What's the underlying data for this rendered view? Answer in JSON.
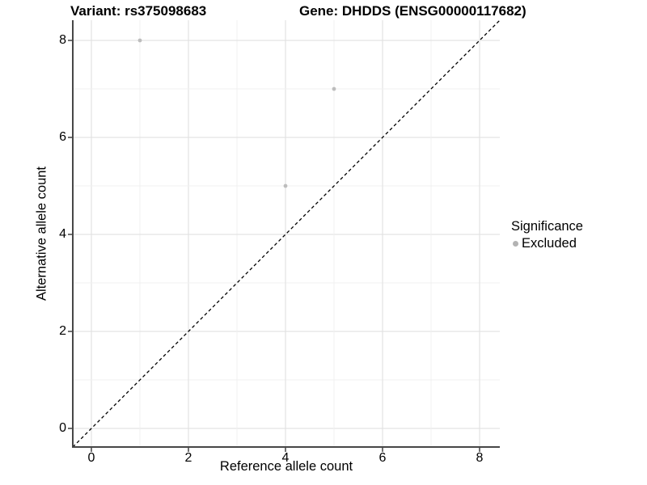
{
  "figure": {
    "title_left": "Variant: rs375098683",
    "title_right": "Gene: DHDDS (ENSG00000117682)"
  },
  "chart_data": {
    "type": "scatter",
    "title": "Variant: rs375098683   Gene: DHDDS (ENSG00000117682)",
    "xlabel": "Reference allele count",
    "ylabel": "Alternative allele count",
    "x_ticks": [
      0,
      2,
      4,
      6,
      8
    ],
    "y_ticks": [
      0,
      2,
      4,
      6,
      8
    ],
    "xlim": [
      -0.4,
      8.45
    ],
    "ylim": [
      -0.4,
      8.42
    ],
    "grid": "major at even integers, minor at odd integers",
    "legend_position": "right",
    "points": [
      {
        "x": 1,
        "y": 8,
        "significance": "Excluded"
      },
      {
        "x": 5,
        "y": 7,
        "significance": "Excluded"
      },
      {
        "x": 4,
        "y": 5,
        "significance": "Excluded"
      }
    ],
    "point_color": "#bdbdbd",
    "identity_line": {
      "equation": "y = x",
      "style": "dashed",
      "color": "#000000"
    },
    "legend": {
      "title": "Significance",
      "entries": [
        {
          "label": "Excluded",
          "color": "#b3b3b3"
        }
      ]
    },
    "colors": {
      "axis_line": "#474747",
      "tick_mark": "#333333",
      "grid_major": "#e3e3e3",
      "grid_minor": "#f0f0f0",
      "background": "#ffffff"
    }
  }
}
